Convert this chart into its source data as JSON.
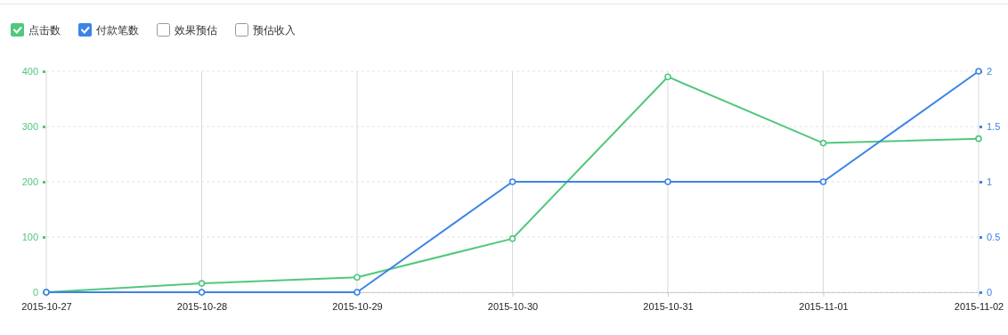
{
  "chart_data": {
    "type": "line",
    "categories": [
      "2015-10-27",
      "2015-10-28",
      "2015-10-29",
      "2015-10-30",
      "2015-10-31",
      "2015-11-01",
      "2015-11-02"
    ],
    "series": [
      {
        "name": "点击数",
        "color": "#52c77e",
        "values": [
          0,
          16,
          27,
          97,
          390,
          270,
          278
        ]
      },
      {
        "name": "付款笔数",
        "color": "#3d84e6",
        "axis": "y2",
        "values": [
          0,
          0,
          0,
          1,
          1,
          1,
          2
        ]
      },
      {
        "name": "效果预估",
        "values": [
          null,
          null,
          null,
          null,
          null,
          null,
          null
        ]
      },
      {
        "name": "预估收入",
        "values": [
          null,
          null,
          null,
          null,
          null,
          null,
          null
        ]
      }
    ],
    "ylim": [
      0,
      400
    ],
    "yticks": [
      0,
      100,
      200,
      300,
      400
    ],
    "y2lim": [
      0,
      2
    ],
    "y2ticks": [
      0,
      0.5,
      1,
      1.5,
      2
    ],
    "grid": true,
    "legend": "top left",
    "marker": "circle",
    "line_style": "solid"
  }
}
